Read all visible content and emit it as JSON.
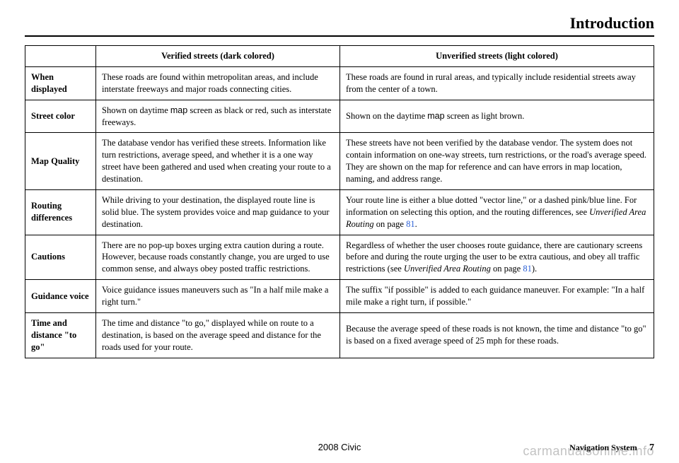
{
  "header": {
    "title": "Introduction"
  },
  "table": {
    "headers": {
      "blank": "",
      "col1": "Verified streets (dark colored)",
      "col2": "Unverified streets (light colored)"
    },
    "rows": [
      {
        "label": "When displayed",
        "c1": "These roads are found within metropolitan areas, and include interstate freeways and major roads connecting cities.",
        "c2": "These roads are found in rural areas, and typically include residential streets away from the center of a town."
      },
      {
        "label": "Street color",
        "c1_pre": "Shown on daytime ",
        "c1_sans": "map",
        "c1_post": " screen as black or red, such as interstate freeways.",
        "c2_pre": "Shown on the daytime ",
        "c2_sans": "map",
        "c2_post": " screen as light brown."
      },
      {
        "label": "Map Quality",
        "c1": "The database vendor has verified these streets. Information like turn restrictions, average speed, and whether it is a one way street have been gathered and used when creating your route to a destination.",
        "c2": "These streets have not been verified by the database vendor. The system does not contain information on one-way streets, turn restrictions, or the road's average speed. They are shown on the map for reference and can have errors in map location, naming, and address range."
      },
      {
        "label": "Routing differences",
        "c1": "While driving to your destination, the displayed route line is solid blue. The system provides voice and map guidance to your destination.",
        "c2_pre": "Your route line is either a blue dotted \"vector line,\" or a dashed pink/blue line. For information on selecting this option, and the routing differences, see ",
        "c2_italic": "Unverified Area Routing",
        "c2_mid": " on page ",
        "c2_link": "81",
        "c2_post": "."
      },
      {
        "label": "Cautions",
        "c1": "There are no pop-up boxes urging extra caution during a route. However, because roads constantly change, you are urged to use common sense, and always obey posted traffic restrictions.",
        "c2_pre": "Regardless of whether the user chooses route guidance, there are cautionary screens before and during the route urging the user to be extra cautious, and obey all traffic restrictions (see ",
        "c2_italic": "Unverified Area Routing",
        "c2_mid": " on page ",
        "c2_link": "81",
        "c2_post": ")."
      },
      {
        "label": "Guidance voice",
        "c1": "Voice guidance issues maneuvers such as \"In a half mile make a right turn.\"",
        "c2": "The suffix \"if possible\" is added to each guidance maneuver. For example: \"In a half mile make a right turn, if possible.\""
      },
      {
        "label": "Time and distance \"to go\"",
        "c1": "The time and distance \"to go,\" displayed while on route to a destination, is based on the average speed and distance for the roads used for your route.",
        "c2": "Because the average speed of these roads is not known, the time and distance \"to go\" is based on a fixed average speed of 25 mph for these roads."
      }
    ]
  },
  "footer": {
    "center": "2008  Civic",
    "right_label": "Navigation System",
    "page_num": "7"
  },
  "watermark": "carmanualsonline.info"
}
